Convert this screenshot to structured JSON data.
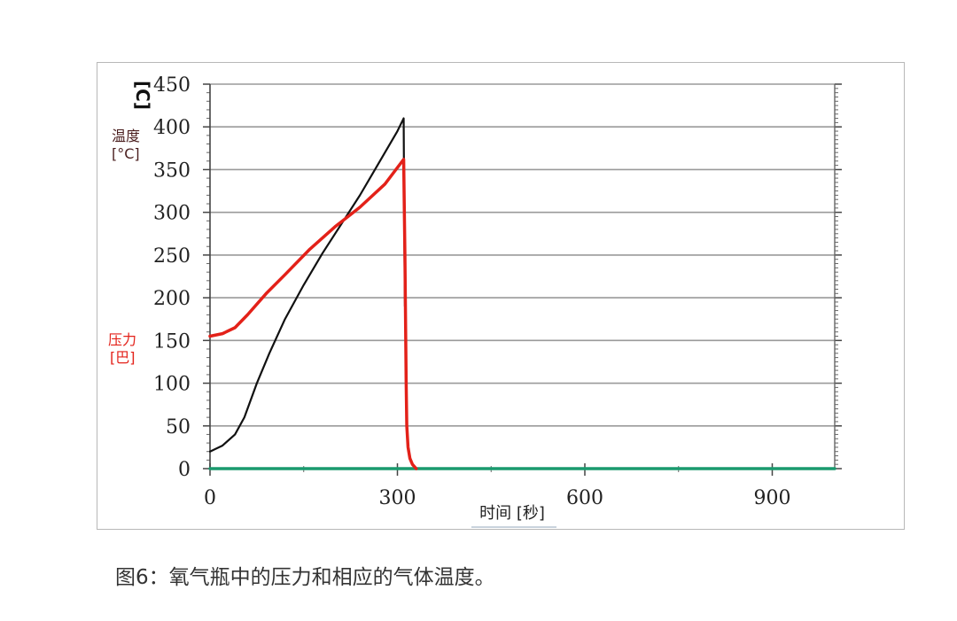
{
  "caption": "图6：氧气瓶中的压力和相应的气体温度。",
  "chart_data": {
    "type": "line",
    "x_ticks": [
      "0",
      "300",
      "600",
      "900"
    ],
    "x_tick_values": [
      0,
      300,
      600,
      900
    ],
    "xlim": [
      0,
      1000
    ],
    "y_ticks": [
      "0",
      "50",
      "100",
      "150",
      "200",
      "250",
      "300",
      "350",
      "400",
      "450"
    ],
    "y_tick_values": [
      0,
      50,
      100,
      150,
      200,
      250,
      300,
      350,
      400,
      450
    ],
    "ylim": [
      0,
      450
    ],
    "xlabel": "时间 [秒]",
    "y_unit_top": "[C]",
    "temperature_label": "温度",
    "temperature_unit": "[°C]",
    "pressure_label": "压力",
    "pressure_unit": "[巴]",
    "grid": true,
    "colors": {
      "pressure": "#e32119",
      "temperature": "#111111",
      "baseline": "#1a9a6e"
    },
    "series": [
      {
        "key": "temperature",
        "x": [
          0,
          20,
          40,
          55,
          75,
          95,
          120,
          150,
          180,
          210,
          240,
          260,
          280,
          300,
          310,
          311,
          312
        ],
        "values": [
          20,
          27,
          40,
          60,
          100,
          135,
          175,
          215,
          252,
          286,
          320,
          345,
          370,
          395,
          410,
          280,
          190
        ]
      },
      {
        "key": "pressure",
        "x": [
          0,
          20,
          40,
          60,
          90,
          120,
          160,
          200,
          240,
          280,
          310,
          312,
          314,
          315,
          317,
          320,
          324,
          330
        ],
        "values": [
          155,
          158,
          165,
          180,
          205,
          227,
          257,
          283,
          306,
          333,
          362,
          250,
          100,
          50,
          25,
          12,
          5,
          0
        ]
      },
      {
        "key": "baseline",
        "x": [
          0,
          1000
        ],
        "values": [
          0,
          0
        ]
      }
    ]
  }
}
